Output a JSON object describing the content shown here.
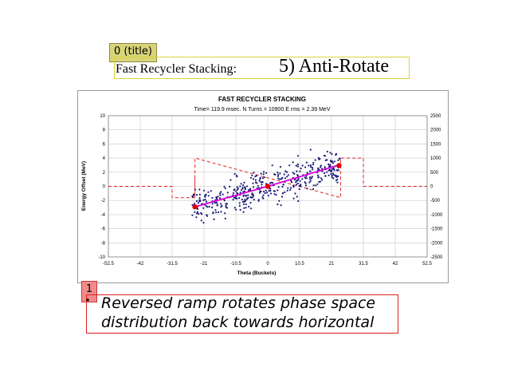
{
  "overlays": {
    "title_tag": "0 (title)",
    "body_tag": "1"
  },
  "slide": {
    "title_lead": "Fast Recycler Stacking:",
    "title_main": "5)  Anti-Rotate",
    "body_lines": [
      "Reversed ramp rotates phase space",
      "distribution back towards horizontal"
    ]
  },
  "chart_data": {
    "type": "scatter",
    "title": "FAST RECYCLER STACKING",
    "subtitle": "Time= 119.9 msec.    N Turns = 10900     E rms = 2.39 MeV",
    "xlabel": "Theta (Buckets)",
    "ylabel": "Energy Offset (MeV)",
    "xlim": [
      -52.5,
      52.5
    ],
    "ylim": [
      -10,
      10
    ],
    "y2lim": [
      -2500,
      2500
    ],
    "xticks": [
      "-52.5",
      "-42",
      "-31.5",
      "-21",
      "-10.5",
      "0",
      "10.5",
      "21",
      "31.5",
      "42",
      "52.5"
    ],
    "yticks": [
      "-10",
      "-8",
      "-6",
      "-4",
      "-2",
      "0",
      "2",
      "4",
      "6",
      "8",
      "10"
    ],
    "y2ticks": [
      "-2500",
      "-2000",
      "-1500",
      "-1000",
      "-500",
      "0",
      "500",
      "1000",
      "1500",
      "2000",
      "2500"
    ],
    "grid": true,
    "scatter_region": {
      "x": [
        -25,
        24
      ],
      "trend_slope": 0.12,
      "spread": 2.1,
      "count": 420
    },
    "fit_line": {
      "points": [
        [
          -24,
          -2.9
        ],
        [
          0,
          0
        ],
        [
          23,
          2.95
        ]
      ],
      "color": "#e000e0"
    },
    "markers": {
      "points": [
        [
          -24,
          -2.9
        ],
        [
          0,
          0
        ],
        [
          23.5,
          2.95
        ]
      ],
      "color": "#e00000"
    },
    "dashed_envelope": {
      "color": "#e02020",
      "secondary_axis": true,
      "path": [
        [
          -52.5,
          0
        ],
        [
          -31.5,
          0
        ],
        [
          -31.5,
          -400
        ],
        [
          -24,
          -400
        ],
        [
          -24,
          400
        ],
        [
          -24,
          -400
        ],
        [
          -24,
          1000
        ],
        [
          24,
          -400
        ],
        [
          24,
          1000
        ],
        [
          31.5,
          1000
        ],
        [
          31.5,
          0
        ],
        [
          52.5,
          0
        ]
      ]
    },
    "dot_color": "#1a1a7a"
  }
}
